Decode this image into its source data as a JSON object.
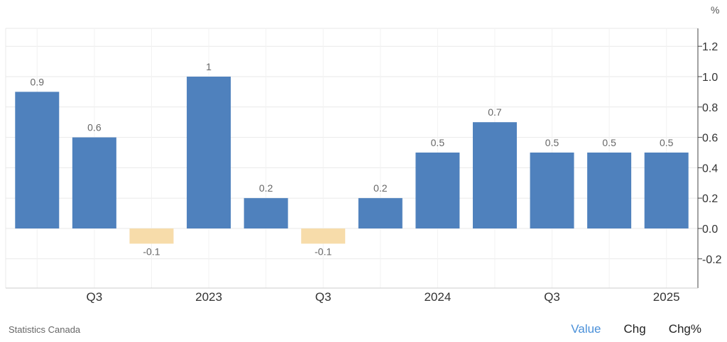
{
  "unit_label": "%",
  "source": "Statistics Canada",
  "tabs": [
    {
      "label": "Value",
      "active": true
    },
    {
      "label": "Chg",
      "active": false
    },
    {
      "label": "Chg%",
      "active": false
    }
  ],
  "colors": {
    "positive": "#4f81bd",
    "negative": "#f7dcaa",
    "grid": "#e9e9e9",
    "axis": "#444444",
    "label": "#666666",
    "active_tab": "#4a90d9"
  },
  "chart_data": {
    "type": "bar",
    "categories": [
      "",
      "Q3",
      "",
      "2023",
      "",
      "Q3",
      "",
      "2024",
      "",
      "Q3",
      "",
      "2025"
    ],
    "values": [
      0.9,
      0.6,
      -0.1,
      1,
      0.2,
      -0.1,
      0.2,
      0.5,
      0.7,
      0.5,
      0.5,
      0.5
    ],
    "data_labels": [
      "0.9",
      "0.6",
      "-0.1",
      "1",
      "0.2",
      "-0.1",
      "0.2",
      "0.5",
      "0.7",
      "0.5",
      "0.5",
      "0.5"
    ],
    "yticks": [
      "1.2",
      "1.0",
      "0.8",
      "0.6",
      "0.4",
      "0.2",
      "0.0",
      "-0.2"
    ],
    "ylim": [
      -0.4,
      1.3
    ],
    "y_axis_position": "right",
    "grid": true,
    "title": "",
    "xlabel": "",
    "ylabel": ""
  }
}
